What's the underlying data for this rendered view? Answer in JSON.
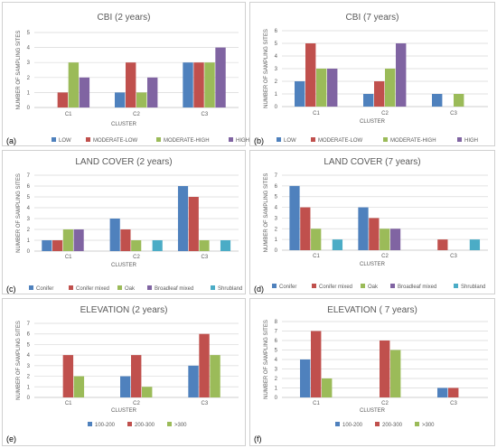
{
  "colors": {
    "c0": "#4f81bd",
    "c1": "#c0504d",
    "c2": "#9bbb59",
    "c3": "#8064a2",
    "c4": "#4bacc6"
  },
  "chart_data": [
    {
      "type": "bar",
      "title": "CBI (2 years)",
      "panel": "(a)",
      "xlabel": "CLUSTER",
      "ylabel": "NUMBER OF SAMPLING SITES",
      "categories": [
        "C1",
        "C2",
        "C3"
      ],
      "ylim": [
        0,
        5
      ],
      "yticks": [
        0,
        1,
        2,
        3,
        4,
        5
      ],
      "grid": true,
      "legend": "bottom",
      "series": [
        {
          "name": "LOW",
          "values": [
            0,
            1,
            3
          ]
        },
        {
          "name": "MODERATE-LOW",
          "values": [
            1,
            3,
            3
          ]
        },
        {
          "name": "MODERATE-HIGH",
          "values": [
            3,
            1,
            3
          ]
        },
        {
          "name": "HIGH",
          "values": [
            2,
            2,
            4
          ]
        }
      ]
    },
    {
      "type": "bar",
      "title": "CBI (7 years)",
      "panel": "(b)",
      "xlabel": "CLUSTER",
      "ylabel": "NUMBER OF SAMPLING SITES",
      "categories": [
        "C1",
        "C2",
        "C3"
      ],
      "ylim": [
        0,
        6
      ],
      "yticks": [
        0,
        1,
        2,
        3,
        4,
        5,
        6
      ],
      "grid": true,
      "legend": "bottom",
      "series": [
        {
          "name": "LOW",
          "values": [
            2,
            1,
            1
          ]
        },
        {
          "name": "MODERATE-LOW",
          "values": [
            5,
            2,
            0
          ]
        },
        {
          "name": "MODERATE-HIGH",
          "values": [
            3,
            3,
            1
          ]
        },
        {
          "name": "HIGH",
          "values": [
            3,
            5,
            0
          ]
        }
      ]
    },
    {
      "type": "bar",
      "title": "LAND COVER (2 years)",
      "panel": "(c)",
      "xlabel": "CLUSTER",
      "ylabel": "NUMBER OF SAMPLING SITES",
      "categories": [
        "C1",
        "C2",
        "C3"
      ],
      "ylim": [
        0,
        7
      ],
      "yticks": [
        0,
        1,
        2,
        3,
        4,
        5,
        6,
        7
      ],
      "grid": true,
      "legend": "bottom",
      "series": [
        {
          "name": "Conifer",
          "values": [
            1,
            3,
            6
          ]
        },
        {
          "name": "Conifer mixed",
          "values": [
            1,
            2,
            5
          ]
        },
        {
          "name": "Oak",
          "values": [
            2,
            1,
            1
          ]
        },
        {
          "name": "Broadleaf mixed",
          "values": [
            2,
            0,
            0
          ]
        },
        {
          "name": "Shrubland",
          "values": [
            0,
            1,
            1
          ]
        }
      ]
    },
    {
      "type": "bar",
      "title": "LAND COVER (7 years)",
      "panel": "(d)",
      "xlabel": "CLUSTER",
      "ylabel": "NUMBER OF SAMPLING SITES",
      "categories": [
        "C1",
        "C2",
        "C3"
      ],
      "ylim": [
        0,
        7
      ],
      "yticks": [
        0,
        1,
        2,
        3,
        4,
        5,
        6,
        7
      ],
      "grid": true,
      "legend": "bottom",
      "series": [
        {
          "name": "Conifer",
          "values": [
            6,
            4,
            0
          ]
        },
        {
          "name": "Conifer mixed",
          "values": [
            4,
            3,
            1
          ]
        },
        {
          "name": "Oak",
          "values": [
            2,
            2,
            0
          ]
        },
        {
          "name": "Broadleaf mixed",
          "values": [
            0,
            2,
            0
          ]
        },
        {
          "name": "Shrubland",
          "values": [
            1,
            0,
            1
          ]
        }
      ]
    },
    {
      "type": "bar",
      "title": "ELEVATION (2 years)",
      "panel": "(e)",
      "xlabel": "CLUSTER",
      "ylabel": "NUMBER OF SAMPLING SITES",
      "categories": [
        "C1",
        "C2",
        "C3"
      ],
      "ylim": [
        0,
        7
      ],
      "yticks": [
        0,
        1,
        2,
        3,
        4,
        5,
        6,
        7
      ],
      "grid": true,
      "legend": "bottom",
      "series": [
        {
          "name": "100-200",
          "values": [
            0,
            2,
            3
          ]
        },
        {
          "name": "200-300",
          "values": [
            4,
            4,
            6
          ]
        },
        {
          "name": ">300",
          "values": [
            2,
            1,
            4
          ]
        }
      ]
    },
    {
      "type": "bar",
      "title": "ELEVATION ( 7 years)",
      "panel": "(f)",
      "xlabel": "CLUSTER",
      "ylabel": "NUMBER OF SAMPLING SITES",
      "categories": [
        "C1",
        "C2",
        "C3"
      ],
      "ylim": [
        0,
        8
      ],
      "yticks": [
        0,
        1,
        2,
        3,
        4,
        5,
        6,
        7,
        8
      ],
      "grid": true,
      "legend": "bottom",
      "series": [
        {
          "name": "100-200",
          "values": [
            4,
            0,
            1
          ]
        },
        {
          "name": "200-300",
          "values": [
            7,
            6,
            1
          ]
        },
        {
          "name": ">300",
          "values": [
            2,
            5,
            0
          ]
        }
      ]
    }
  ]
}
